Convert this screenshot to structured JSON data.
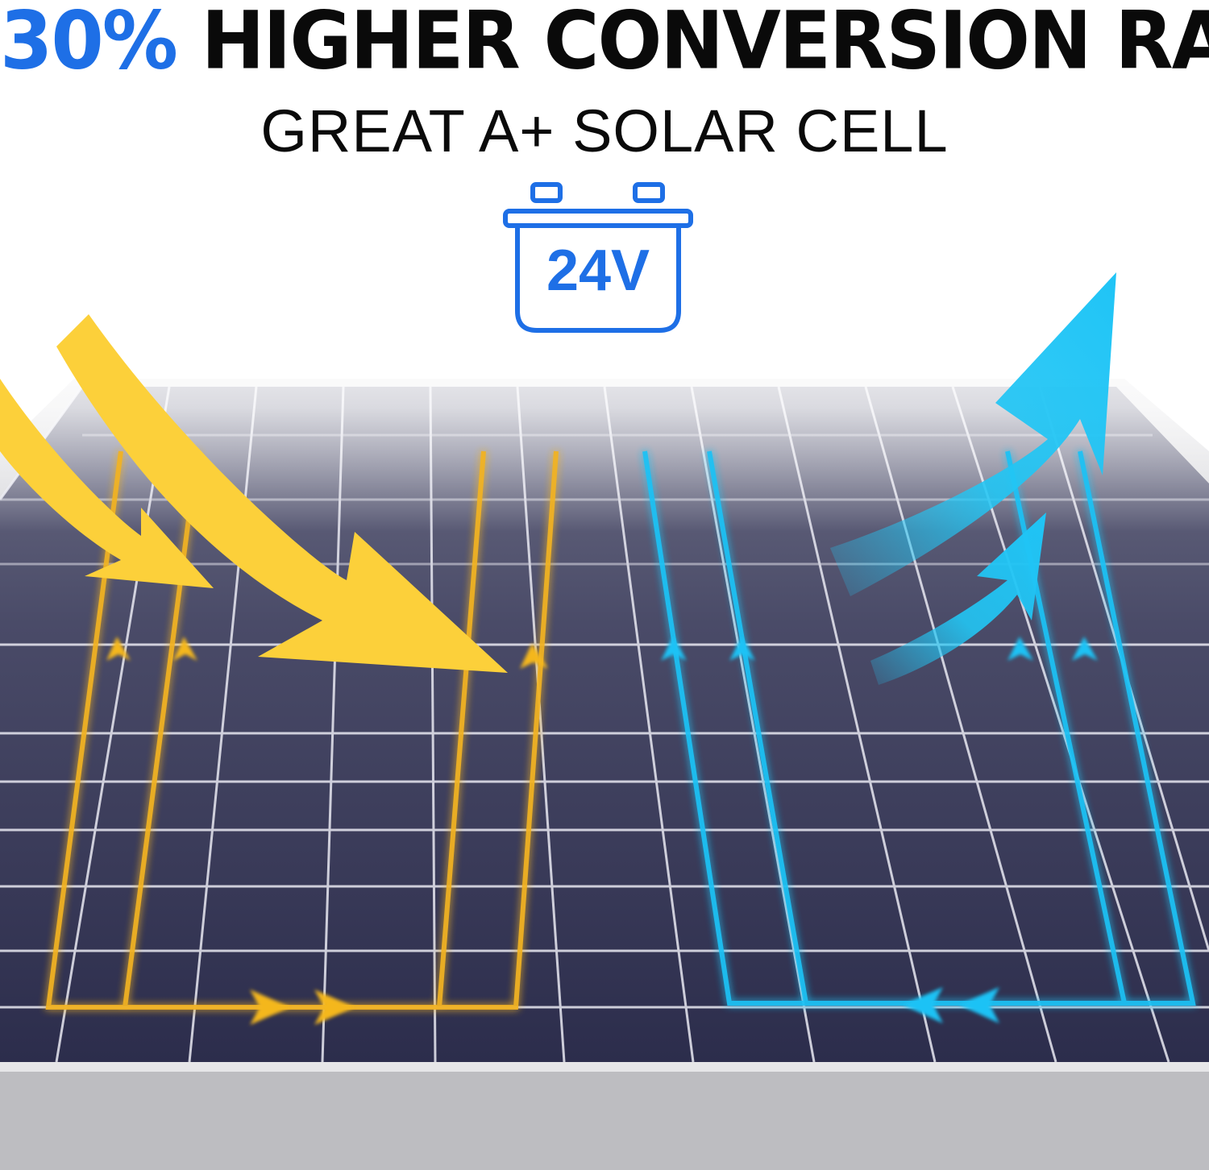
{
  "headline": {
    "accent": "30%",
    "main": "HIGHER CONVERSION RATE"
  },
  "subhead": "GREAT A+ SOLAR CELL",
  "battery": {
    "label": "24V",
    "icon": "battery-icon"
  },
  "colors": {
    "accent_blue": "#1e6fe6",
    "sun_yellow": "#fcd03a",
    "output_cyan": "#22c6f4",
    "panel_dark": "#2f3050",
    "frame_silver": "#c9c9cc"
  }
}
